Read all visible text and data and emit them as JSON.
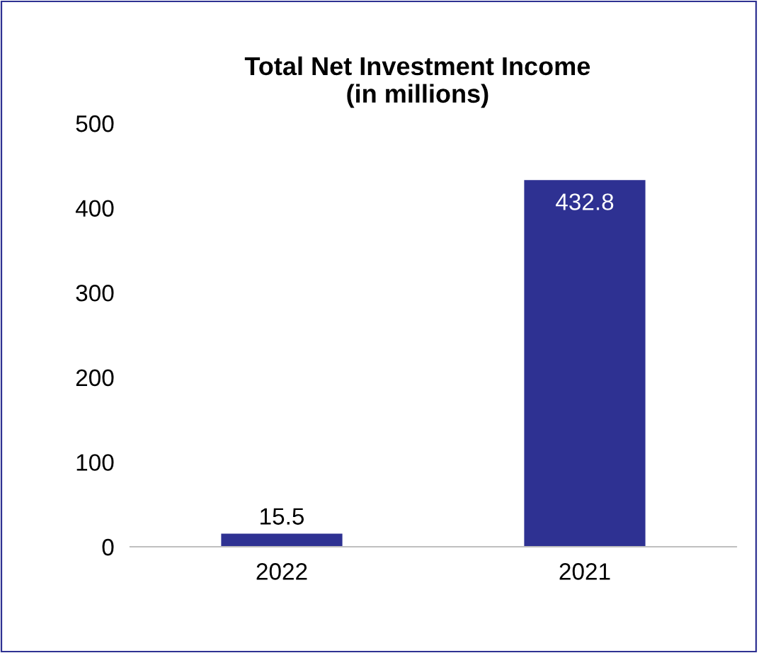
{
  "chart_data": {
    "type": "bar",
    "title": "Total Net Investment Income\n(in millions)",
    "categories": [
      "2022",
      "2021"
    ],
    "values": [
      15.5,
      432.8
    ],
    "color": "#2e3192",
    "ylim": [
      0,
      500
    ],
    "yticks": [
      0,
      100,
      200,
      300,
      400,
      500
    ],
    "grid": false,
    "data_labels": true
  }
}
